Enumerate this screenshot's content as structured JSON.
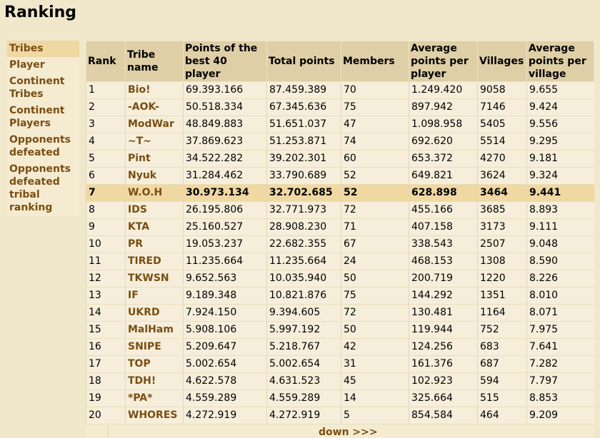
{
  "page": {
    "title": "Ranking"
  },
  "sidebar": {
    "items": [
      {
        "label": "Tribes",
        "active": true
      },
      {
        "label": "Player"
      },
      {
        "label": "Continent Tribes"
      },
      {
        "label": "Continent Players"
      },
      {
        "label": "Opponents defeated"
      },
      {
        "label": "Opponents defeated tribal ranking"
      }
    ]
  },
  "table": {
    "headers": [
      "Rank",
      "Tribe name",
      "Points of the best 40 player",
      "Total points",
      "Members",
      "Average points per player",
      "Villages",
      "Average points per village"
    ],
    "highlight_rank": "7",
    "rows": [
      [
        "1",
        "Bio!",
        "69.393.166",
        "87.459.389",
        "70",
        "1.249.420",
        "9058",
        "9.655"
      ],
      [
        "2",
        "-AOK-",
        "50.518.334",
        "67.345.636",
        "75",
        "897.942",
        "7146",
        "9.424"
      ],
      [
        "3",
        "ModWar",
        "48.849.883",
        "51.651.037",
        "47",
        "1.098.958",
        "5405",
        "9.556"
      ],
      [
        "4",
        "~T~",
        "37.869.623",
        "51.253.871",
        "74",
        "692.620",
        "5514",
        "9.295"
      ],
      [
        "5",
        "Pint",
        "34.522.282",
        "39.202.301",
        "60",
        "653.372",
        "4270",
        "9.181"
      ],
      [
        "6",
        "Nyuk",
        "31.284.462",
        "33.790.689",
        "52",
        "649.821",
        "3624",
        "9.324"
      ],
      [
        "7",
        "W.O.H",
        "30.973.134",
        "32.702.685",
        "52",
        "628.898",
        "3464",
        "9.441"
      ],
      [
        "8",
        "IDS",
        "26.195.806",
        "32.771.973",
        "72",
        "455.166",
        "3685",
        "8.893"
      ],
      [
        "9",
        "KTA",
        "25.160.527",
        "28.908.230",
        "71",
        "407.158",
        "3173",
        "9.111"
      ],
      [
        "10",
        "PR",
        "19.053.237",
        "22.682.355",
        "67",
        "338.543",
        "2507",
        "9.048"
      ],
      [
        "11",
        "TIRED",
        "11.235.664",
        "11.235.664",
        "24",
        "468.153",
        "1308",
        "8.590"
      ],
      [
        "12",
        "TKWSN",
        "9.652.563",
        "10.035.940",
        "50",
        "200.719",
        "1220",
        "8.226"
      ],
      [
        "13",
        "IF",
        "9.189.348",
        "10.821.876",
        "75",
        "144.292",
        "1351",
        "8.010"
      ],
      [
        "14",
        "UKRD",
        "7.924.150",
        "9.394.605",
        "72",
        "130.481",
        "1164",
        "8.071"
      ],
      [
        "15",
        "MalHam",
        "5.908.106",
        "5.997.192",
        "50",
        "119.944",
        "752",
        "7.975"
      ],
      [
        "16",
        "SNIPE",
        "5.209.647",
        "5.218.767",
        "42",
        "124.256",
        "683",
        "7.641"
      ],
      [
        "17",
        "TOP",
        "5.002.654",
        "5.002.654",
        "31",
        "161.376",
        "687",
        "7.282"
      ],
      [
        "18",
        "TDH!",
        "4.622.578",
        "4.631.523",
        "45",
        "102.923",
        "594",
        "7.797"
      ],
      [
        "19",
        "*PA*",
        "4.559.289",
        "4.559.289",
        "14",
        "325.664",
        "515",
        "8.853"
      ],
      [
        "20",
        "WHORES",
        "4.272.919",
        "4.272.919",
        "5",
        "854.584",
        "464",
        "9.209"
      ]
    ]
  },
  "pager": {
    "next_label": "down >>>"
  }
}
